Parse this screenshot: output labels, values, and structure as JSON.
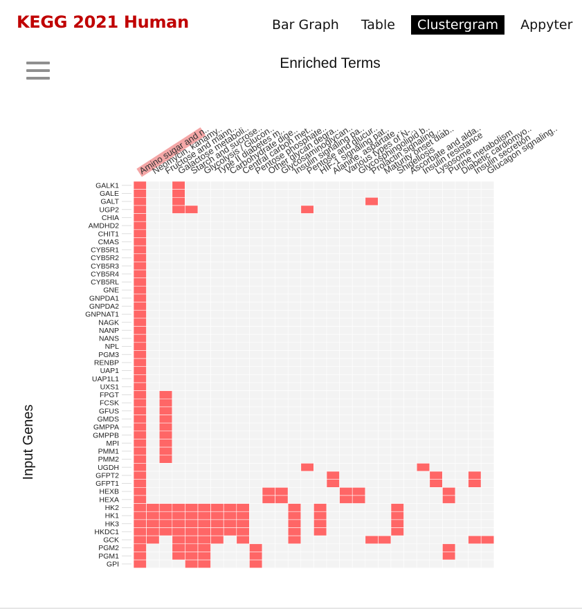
{
  "app": {
    "title": "KEGG 2021 Human",
    "nav": [
      {
        "label": "Bar Graph",
        "active": false
      },
      {
        "label": "Table",
        "active": false
      },
      {
        "label": "Clustergram",
        "active": true
      },
      {
        "label": "Appyter",
        "active": false
      }
    ]
  },
  "colors": {
    "filled": "#ff6666",
    "empty": "#f3f3f3",
    "highlight_bg": "#f4a6a6",
    "title_red": "#c00000"
  },
  "chart_data": {
    "type": "heatmap",
    "title": "Enriched Terms",
    "xlabel": "",
    "ylabel": "Input Genes",
    "highlighted_column": 0,
    "columns": [
      "Amino sugar and n..",
      "Neomycin, kanamy..",
      "Fructose and mann..",
      "Galactose metaboli..",
      "Starch and sucrose..",
      "Glycolysis / Glucon..",
      "Type II diabetes m..",
      "Carbohydrate dige..",
      "Central carbon met..",
      "Pentose phosphate..",
      "Other glycan degra..",
      "Glycosaminoglycan..",
      "Insulin signaling pa..",
      "Pentose and glucur..",
      "HIF-1 signaling pat..",
      "Alanine, aspartate ..",
      "Various types of N-..",
      "Glycosphingolipid b..",
      "Prolactin signaling ..",
      "Maturity onset diab..",
      "Shigellosis",
      "Ascorbate and alda..",
      "Insulin resistance",
      "Lysosome",
      "Purine metabolism",
      "Diabetic cardiomyo..",
      "Insulin secretion",
      "Glucagon signaling.."
    ],
    "rows": [
      "GALK1",
      "GALE",
      "GALT",
      "UGP2",
      "CHIA",
      "AMDHD2",
      "CHIT1",
      "CMAS",
      "CYB5R1",
      "CYB5R2",
      "CYB5R3",
      "CYB5R4",
      "CYB5RL",
      "GNE",
      "GNPDA1",
      "GNPDA2",
      "GNPNAT1",
      "NAGK",
      "NANP",
      "NANS",
      "NPL",
      "PGM3",
      "RENBP",
      "UAP1",
      "UAP1L1",
      "UXS1",
      "FPGT",
      "FCSK",
      "GFUS",
      "GMDS",
      "GMPPA",
      "GMPPB",
      "MPI",
      "PMM1",
      "PMM2",
      "UGDH",
      "GFPT2",
      "GFPT1",
      "HEXB",
      "HEXA",
      "HK2",
      "HK1",
      "HK3",
      "HKDC1",
      "GCK",
      "PGM2",
      "PGM1",
      "GPI"
    ],
    "matrix": [
      [
        1,
        0,
        0,
        1,
        0,
        0,
        0,
        0,
        0,
        0,
        0,
        0,
        0,
        0,
        0,
        0,
        0,
        0,
        0,
        0,
        0,
        0,
        0,
        0,
        0,
        0,
        0,
        0
      ],
      [
        1,
        0,
        0,
        1,
        0,
        0,
        0,
        0,
        0,
        0,
        0,
        0,
        0,
        0,
        0,
        0,
        0,
        0,
        0,
        0,
        0,
        0,
        0,
        0,
        0,
        0,
        0,
        0
      ],
      [
        1,
        0,
        0,
        1,
        0,
        0,
        0,
        0,
        0,
        0,
        0,
        0,
        0,
        0,
        0,
        0,
        0,
        0,
        1,
        0,
        0,
        0,
        0,
        0,
        0,
        0,
        0,
        0
      ],
      [
        1,
        0,
        0,
        1,
        1,
        0,
        0,
        0,
        0,
        0,
        0,
        0,
        0,
        1,
        0,
        0,
        0,
        0,
        0,
        0,
        0,
        0,
        0,
        0,
        0,
        0,
        0,
        0
      ],
      [
        1,
        0,
        0,
        0,
        0,
        0,
        0,
        0,
        0,
        0,
        0,
        0,
        0,
        0,
        0,
        0,
        0,
        0,
        0,
        0,
        0,
        0,
        0,
        0,
        0,
        0,
        0,
        0
      ],
      [
        1,
        0,
        0,
        0,
        0,
        0,
        0,
        0,
        0,
        0,
        0,
        0,
        0,
        0,
        0,
        0,
        0,
        0,
        0,
        0,
        0,
        0,
        0,
        0,
        0,
        0,
        0,
        0
      ],
      [
        1,
        0,
        0,
        0,
        0,
        0,
        0,
        0,
        0,
        0,
        0,
        0,
        0,
        0,
        0,
        0,
        0,
        0,
        0,
        0,
        0,
        0,
        0,
        0,
        0,
        0,
        0,
        0
      ],
      [
        1,
        0,
        0,
        0,
        0,
        0,
        0,
        0,
        0,
        0,
        0,
        0,
        0,
        0,
        0,
        0,
        0,
        0,
        0,
        0,
        0,
        0,
        0,
        0,
        0,
        0,
        0,
        0
      ],
      [
        1,
        0,
        0,
        0,
        0,
        0,
        0,
        0,
        0,
        0,
        0,
        0,
        0,
        0,
        0,
        0,
        0,
        0,
        0,
        0,
        0,
        0,
        0,
        0,
        0,
        0,
        0,
        0
      ],
      [
        1,
        0,
        0,
        0,
        0,
        0,
        0,
        0,
        0,
        0,
        0,
        0,
        0,
        0,
        0,
        0,
        0,
        0,
        0,
        0,
        0,
        0,
        0,
        0,
        0,
        0,
        0,
        0
      ],
      [
        1,
        0,
        0,
        0,
        0,
        0,
        0,
        0,
        0,
        0,
        0,
        0,
        0,
        0,
        0,
        0,
        0,
        0,
        0,
        0,
        0,
        0,
        0,
        0,
        0,
        0,
        0,
        0
      ],
      [
        1,
        0,
        0,
        0,
        0,
        0,
        0,
        0,
        0,
        0,
        0,
        0,
        0,
        0,
        0,
        0,
        0,
        0,
        0,
        0,
        0,
        0,
        0,
        0,
        0,
        0,
        0,
        0
      ],
      [
        1,
        0,
        0,
        0,
        0,
        0,
        0,
        0,
        0,
        0,
        0,
        0,
        0,
        0,
        0,
        0,
        0,
        0,
        0,
        0,
        0,
        0,
        0,
        0,
        0,
        0,
        0,
        0
      ],
      [
        1,
        0,
        0,
        0,
        0,
        0,
        0,
        0,
        0,
        0,
        0,
        0,
        0,
        0,
        0,
        0,
        0,
        0,
        0,
        0,
        0,
        0,
        0,
        0,
        0,
        0,
        0,
        0
      ],
      [
        1,
        0,
        0,
        0,
        0,
        0,
        0,
        0,
        0,
        0,
        0,
        0,
        0,
        0,
        0,
        0,
        0,
        0,
        0,
        0,
        0,
        0,
        0,
        0,
        0,
        0,
        0,
        0
      ],
      [
        1,
        0,
        0,
        0,
        0,
        0,
        0,
        0,
        0,
        0,
        0,
        0,
        0,
        0,
        0,
        0,
        0,
        0,
        0,
        0,
        0,
        0,
        0,
        0,
        0,
        0,
        0,
        0
      ],
      [
        1,
        0,
        0,
        0,
        0,
        0,
        0,
        0,
        0,
        0,
        0,
        0,
        0,
        0,
        0,
        0,
        0,
        0,
        0,
        0,
        0,
        0,
        0,
        0,
        0,
        0,
        0,
        0
      ],
      [
        1,
        0,
        0,
        0,
        0,
        0,
        0,
        0,
        0,
        0,
        0,
        0,
        0,
        0,
        0,
        0,
        0,
        0,
        0,
        0,
        0,
        0,
        0,
        0,
        0,
        0,
        0,
        0
      ],
      [
        1,
        0,
        0,
        0,
        0,
        0,
        0,
        0,
        0,
        0,
        0,
        0,
        0,
        0,
        0,
        0,
        0,
        0,
        0,
        0,
        0,
        0,
        0,
        0,
        0,
        0,
        0,
        0
      ],
      [
        1,
        0,
        0,
        0,
        0,
        0,
        0,
        0,
        0,
        0,
        0,
        0,
        0,
        0,
        0,
        0,
        0,
        0,
        0,
        0,
        0,
        0,
        0,
        0,
        0,
        0,
        0,
        0
      ],
      [
        1,
        0,
        0,
        0,
        0,
        0,
        0,
        0,
        0,
        0,
        0,
        0,
        0,
        0,
        0,
        0,
        0,
        0,
        0,
        0,
        0,
        0,
        0,
        0,
        0,
        0,
        0,
        0
      ],
      [
        1,
        0,
        0,
        0,
        0,
        0,
        0,
        0,
        0,
        0,
        0,
        0,
        0,
        0,
        0,
        0,
        0,
        0,
        0,
        0,
        0,
        0,
        0,
        0,
        0,
        0,
        0,
        0
      ],
      [
        1,
        0,
        0,
        0,
        0,
        0,
        0,
        0,
        0,
        0,
        0,
        0,
        0,
        0,
        0,
        0,
        0,
        0,
        0,
        0,
        0,
        0,
        0,
        0,
        0,
        0,
        0,
        0
      ],
      [
        1,
        0,
        0,
        0,
        0,
        0,
        0,
        0,
        0,
        0,
        0,
        0,
        0,
        0,
        0,
        0,
        0,
        0,
        0,
        0,
        0,
        0,
        0,
        0,
        0,
        0,
        0,
        0
      ],
      [
        1,
        0,
        0,
        0,
        0,
        0,
        0,
        0,
        0,
        0,
        0,
        0,
        0,
        0,
        0,
        0,
        0,
        0,
        0,
        0,
        0,
        0,
        0,
        0,
        0,
        0,
        0,
        0
      ],
      [
        1,
        0,
        0,
        0,
        0,
        0,
        0,
        0,
        0,
        0,
        0,
        0,
        0,
        0,
        0,
        0,
        0,
        0,
        0,
        0,
        0,
        0,
        0,
        0,
        0,
        0,
        0,
        0
      ],
      [
        1,
        0,
        1,
        0,
        0,
        0,
        0,
        0,
        0,
        0,
        0,
        0,
        0,
        0,
        0,
        0,
        0,
        0,
        0,
        0,
        0,
        0,
        0,
        0,
        0,
        0,
        0,
        0
      ],
      [
        1,
        0,
        1,
        0,
        0,
        0,
        0,
        0,
        0,
        0,
        0,
        0,
        0,
        0,
        0,
        0,
        0,
        0,
        0,
        0,
        0,
        0,
        0,
        0,
        0,
        0,
        0,
        0
      ],
      [
        1,
        0,
        1,
        0,
        0,
        0,
        0,
        0,
        0,
        0,
        0,
        0,
        0,
        0,
        0,
        0,
        0,
        0,
        0,
        0,
        0,
        0,
        0,
        0,
        0,
        0,
        0,
        0
      ],
      [
        1,
        0,
        1,
        0,
        0,
        0,
        0,
        0,
        0,
        0,
        0,
        0,
        0,
        0,
        0,
        0,
        0,
        0,
        0,
        0,
        0,
        0,
        0,
        0,
        0,
        0,
        0,
        0
      ],
      [
        1,
        0,
        1,
        0,
        0,
        0,
        0,
        0,
        0,
        0,
        0,
        0,
        0,
        0,
        0,
        0,
        0,
        0,
        0,
        0,
        0,
        0,
        0,
        0,
        0,
        0,
        0,
        0
      ],
      [
        1,
        0,
        1,
        0,
        0,
        0,
        0,
        0,
        0,
        0,
        0,
        0,
        0,
        0,
        0,
        0,
        0,
        0,
        0,
        0,
        0,
        0,
        0,
        0,
        0,
        0,
        0,
        0
      ],
      [
        1,
        0,
        1,
        0,
        0,
        0,
        0,
        0,
        0,
        0,
        0,
        0,
        0,
        0,
        0,
        0,
        0,
        0,
        0,
        0,
        0,
        0,
        0,
        0,
        0,
        0,
        0,
        0
      ],
      [
        1,
        0,
        1,
        0,
        0,
        0,
        0,
        0,
        0,
        0,
        0,
        0,
        0,
        0,
        0,
        0,
        0,
        0,
        0,
        0,
        0,
        0,
        0,
        0,
        0,
        0,
        0,
        0
      ],
      [
        1,
        0,
        1,
        0,
        0,
        0,
        0,
        0,
        0,
        0,
        0,
        0,
        0,
        0,
        0,
        0,
        0,
        0,
        0,
        0,
        0,
        0,
        0,
        0,
        0,
        0,
        0,
        0
      ],
      [
        1,
        0,
        0,
        0,
        0,
        0,
        0,
        0,
        0,
        0,
        0,
        0,
        0,
        1,
        0,
        0,
        0,
        0,
        0,
        0,
        0,
        0,
        1,
        0,
        0,
        0,
        0,
        0
      ],
      [
        1,
        0,
        0,
        0,
        0,
        0,
        0,
        0,
        0,
        0,
        0,
        0,
        0,
        0,
        0,
        1,
        0,
        0,
        0,
        0,
        0,
        0,
        0,
        1,
        0,
        0,
        1,
        0
      ],
      [
        1,
        0,
        0,
        0,
        0,
        0,
        0,
        0,
        0,
        0,
        0,
        0,
        0,
        0,
        0,
        1,
        0,
        0,
        0,
        0,
        0,
        0,
        0,
        1,
        0,
        0,
        1,
        0
      ],
      [
        1,
        0,
        0,
        0,
        0,
        0,
        0,
        0,
        0,
        0,
        1,
        1,
        0,
        0,
        0,
        0,
        1,
        1,
        0,
        0,
        0,
        0,
        0,
        0,
        1,
        0,
        0,
        0
      ],
      [
        1,
        0,
        0,
        0,
        0,
        0,
        0,
        0,
        0,
        0,
        1,
        1,
        0,
        0,
        0,
        0,
        1,
        1,
        0,
        0,
        0,
        0,
        0,
        0,
        1,
        0,
        0,
        0
      ],
      [
        1,
        1,
        1,
        1,
        1,
        1,
        1,
        1,
        1,
        0,
        0,
        0,
        1,
        0,
        1,
        0,
        0,
        0,
        0,
        0,
        1,
        0,
        0,
        0,
        0,
        0,
        0,
        0
      ],
      [
        1,
        1,
        1,
        1,
        1,
        1,
        1,
        1,
        1,
        0,
        0,
        0,
        1,
        0,
        1,
        0,
        0,
        0,
        0,
        0,
        1,
        0,
        0,
        0,
        0,
        0,
        0,
        0
      ],
      [
        1,
        1,
        1,
        1,
        1,
        1,
        1,
        1,
        1,
        0,
        0,
        0,
        1,
        0,
        1,
        0,
        0,
        0,
        0,
        0,
        1,
        0,
        0,
        0,
        0,
        0,
        0,
        0
      ],
      [
        1,
        1,
        1,
        1,
        1,
        1,
        1,
        1,
        1,
        0,
        0,
        0,
        1,
        0,
        1,
        0,
        0,
        0,
        0,
        0,
        1,
        0,
        0,
        0,
        0,
        0,
        0,
        0
      ],
      [
        1,
        1,
        0,
        1,
        1,
        1,
        1,
        0,
        1,
        0,
        0,
        0,
        1,
        0,
        0,
        0,
        0,
        0,
        1,
        1,
        0,
        0,
        0,
        0,
        0,
        0,
        1,
        1
      ],
      [
        1,
        0,
        0,
        1,
        1,
        1,
        0,
        0,
        0,
        1,
        0,
        0,
        0,
        0,
        0,
        0,
        0,
        0,
        0,
        0,
        0,
        0,
        0,
        0,
        1,
        0,
        0,
        0
      ],
      [
        1,
        0,
        0,
        1,
        1,
        1,
        0,
        0,
        0,
        1,
        0,
        0,
        0,
        0,
        0,
        0,
        0,
        0,
        0,
        0,
        0,
        0,
        0,
        0,
        1,
        0,
        0,
        0
      ],
      [
        1,
        0,
        0,
        0,
        1,
        1,
        0,
        0,
        0,
        1,
        0,
        0,
        0,
        0,
        0,
        0,
        0,
        0,
        0,
        0,
        0,
        0,
        0,
        0,
        0,
        0,
        0,
        0
      ]
    ]
  }
}
